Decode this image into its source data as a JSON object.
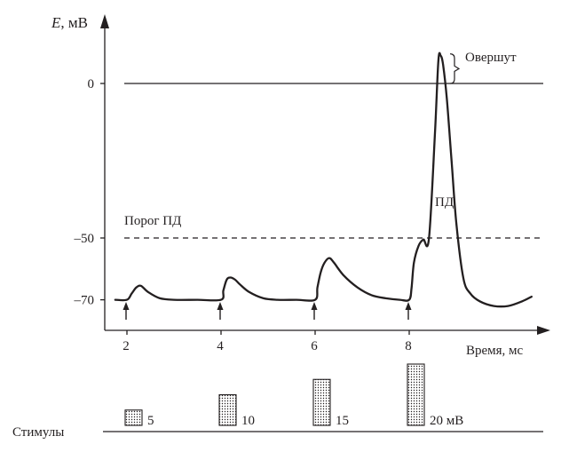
{
  "chart_data": {
    "type": "line",
    "y_axis": {
      "label_letter": "E",
      "label_unit": ", мВ",
      "ticks": [
        {
          "value": 0,
          "label": "0"
        },
        {
          "value": -50,
          "label": "–50"
        },
        {
          "value": -70,
          "label": "–70"
        }
      ]
    },
    "x_axis": {
      "label": "Время, мс",
      "ticks": [
        {
          "value": 2,
          "label": "2"
        },
        {
          "value": 4,
          "label": "4"
        },
        {
          "value": 6,
          "label": "6"
        },
        {
          "value": 8,
          "label": "8"
        }
      ]
    },
    "reference_lines": [
      {
        "value": 0,
        "style": "solid"
      },
      {
        "value": -50,
        "style": "dashed",
        "label": "Порог ПД"
      }
    ],
    "annotations": {
      "overshoot": "Овершут",
      "action_potential": "ПД"
    },
    "series": [
      {
        "x": [
          1.75,
          2.0,
          2.1,
          2.2,
          2.3,
          2.45,
          2.7,
          3.0,
          3.5,
          4.0,
          4.05,
          4.12,
          4.2,
          4.3,
          4.4,
          4.6,
          4.9,
          5.2,
          5.6,
          6.0,
          6.05,
          6.12,
          6.2,
          6.3,
          6.4,
          6.6,
          6.9,
          7.2,
          7.5,
          7.8,
          8.0,
          8.05,
          8.1,
          8.2,
          8.3,
          8.42,
          8.55,
          8.62,
          8.67,
          8.72,
          8.8,
          8.9,
          9.0,
          9.15,
          9.3,
          9.5,
          9.8,
          10.1,
          10.4,
          10.6
        ],
        "y": [
          -70,
          -70,
          -68,
          -66,
          -65.5,
          -67.5,
          -69.5,
          -70,
          -70,
          -70,
          -67,
          -63.5,
          -62.8,
          -63.5,
          -65,
          -67.5,
          -69.5,
          -70,
          -70,
          -70,
          -66,
          -61,
          -58,
          -56.5,
          -58,
          -62,
          -66,
          -68.5,
          -69.5,
          -70,
          -70,
          -66,
          -58,
          -52.5,
          -50.5,
          -50,
          -15,
          7.5,
          9,
          6,
          -5,
          -25,
          -45,
          -63,
          -68,
          -70.5,
          -72,
          -72,
          -70.5,
          -69
        ]
      }
    ],
    "stimuli": {
      "label": "Стимулы",
      "items": [
        {
          "time": 2,
          "amplitude": 5,
          "label": "5"
        },
        {
          "time": 4,
          "amplitude": 10,
          "label": "10"
        },
        {
          "time": 6,
          "amplitude": 15,
          "label": "15"
        },
        {
          "time": 8,
          "amplitude": 20,
          "label": "20 мВ"
        }
      ]
    }
  }
}
